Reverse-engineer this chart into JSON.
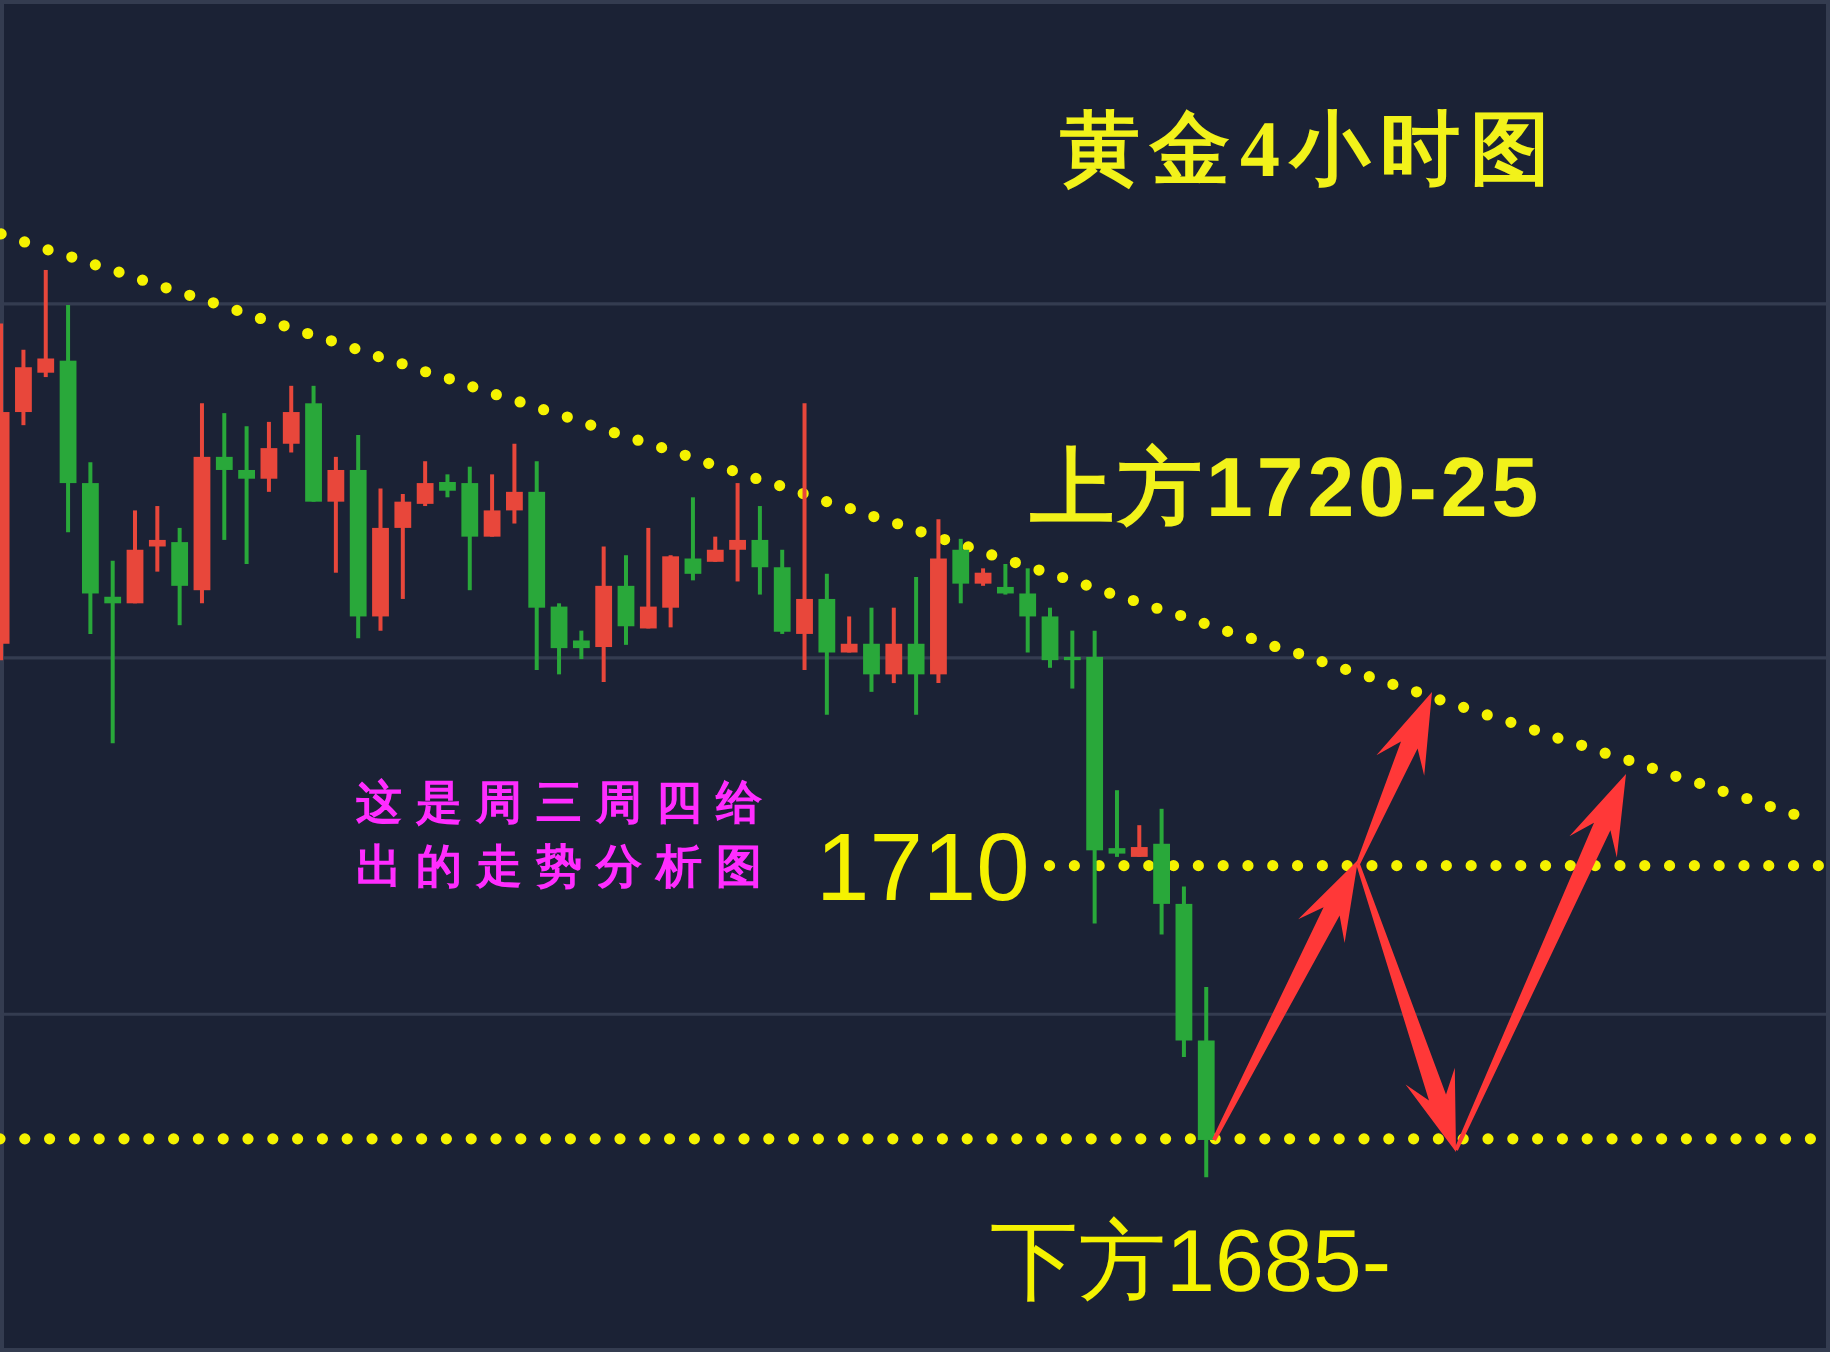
{
  "chart_data": {
    "type": "candlestick",
    "title": "黄金4小时图",
    "categories": [
      null,
      null,
      null,
      null,
      null,
      null,
      null,
      null,
      null,
      null,
      null,
      null,
      null,
      null,
      null,
      null,
      null,
      null,
      null,
      null,
      null,
      null,
      null,
      null,
      null,
      null,
      null,
      null,
      null,
      null,
      null,
      null,
      null,
      null,
      null,
      null,
      null,
      null,
      null,
      null,
      null,
      null,
      null,
      null,
      null,
      null,
      null,
      null,
      null,
      null,
      null,
      null,
      null,
      null,
      null,
      null,
      null,
      null,
      null,
      null,
      null,
      null,
      null,
      null,
      null,
      null,
      null,
      null,
      null,
      null,
      null,
      null,
      null,
      null,
      null,
      null,
      null,
      null,
      null,
      null,
      null,
      null
    ],
    "ohlc": [
      [
        1730.3,
        1759.6,
        1728.8,
        1751.5
      ],
      [
        1751.5,
        1757.2,
        1750.3,
        1755.6
      ],
      [
        1755.1,
        1764.5,
        1754.7,
        1756.4
      ],
      [
        1756.2,
        1761.3,
        1740.5,
        1745.0
      ],
      [
        1745.0,
        1746.9,
        1731.2,
        1734.9
      ],
      [
        1734.6,
        1737.9,
        1721.2,
        1734.0
      ],
      [
        1734.0,
        1742.5,
        1734.0,
        1738.9
      ],
      [
        1739.2,
        1742.9,
        1736.9,
        1739.8
      ],
      [
        1739.6,
        1740.9,
        1732.0,
        1735.6
      ],
      [
        1735.2,
        1752.3,
        1734.0,
        1747.4
      ],
      [
        1747.4,
        1751.4,
        1739.8,
        1746.2
      ],
      [
        1746.2,
        1750.2,
        1737.6,
        1745.4
      ],
      [
        1745.4,
        1750.6,
        1744.2,
        1748.2
      ],
      [
        1748.6,
        1753.9,
        1747.8,
        1751.5
      ],
      [
        1752.3,
        1753.9,
        1743.3,
        1743.3
      ],
      [
        1743.3,
        1747.4,
        1736.8,
        1746.2
      ],
      [
        1746.2,
        1749.4,
        1730.8,
        1732.8
      ],
      [
        1732.8,
        1744.5,
        1731.5,
        1740.9
      ],
      [
        1740.9,
        1744.0,
        1734.4,
        1743.3
      ],
      [
        1743.1,
        1747.0,
        1742.9,
        1745.0
      ],
      [
        1745.1,
        1745.8,
        1743.7,
        1744.3
      ],
      [
        1745.0,
        1746.5,
        1735.2,
        1740.1
      ],
      [
        1740.1,
        1745.8,
        1740.1,
        1742.5
      ],
      [
        1742.5,
        1748.6,
        1741.3,
        1744.2
      ],
      [
        1744.2,
        1747.0,
        1727.9,
        1733.6
      ],
      [
        1733.7,
        1734.0,
        1727.5,
        1729.9
      ],
      [
        1730.6,
        1731.5,
        1728.9,
        1729.9
      ],
      [
        1730.0,
        1739.2,
        1726.8,
        1735.6
      ],
      [
        1735.6,
        1738.4,
        1730.2,
        1731.9
      ],
      [
        1731.7,
        1740.9,
        1731.7,
        1733.7
      ],
      [
        1733.6,
        1738.4,
        1731.8,
        1738.3
      ],
      [
        1738.1,
        1743.7,
        1736.1,
        1736.7
      ],
      [
        1737.8,
        1740.1,
        1737.8,
        1738.9
      ],
      [
        1738.9,
        1745.0,
        1736.0,
        1739.8
      ],
      [
        1739.8,
        1742.9,
        1734.8,
        1737.3
      ],
      [
        1737.3,
        1738.9,
        1731.2,
        1731.4
      ],
      [
        1731.2,
        1752.3,
        1727.9,
        1734.4
      ],
      [
        1734.4,
        1736.7,
        1723.8,
        1729.5
      ],
      [
        1729.5,
        1732.8,
        1729.5,
        1730.3
      ],
      [
        1730.3,
        1733.6,
        1725.9,
        1727.5
      ],
      [
        1727.5,
        1733.6,
        1726.7,
        1730.3
      ],
      [
        1730.3,
        1736.4,
        1723.8,
        1727.5
      ],
      [
        1727.5,
        1741.7,
        1726.7,
        1738.1
      ],
      [
        1738.9,
        1739.9,
        1734.0,
        1735.8
      ],
      [
        1735.8,
        1737.2,
        1735.6,
        1736.8
      ],
      [
        1735.5,
        1737.6,
        1734.8,
        1734.9
      ],
      [
        1734.9,
        1737.2,
        1729.5,
        1732.8
      ],
      [
        1732.8,
        1733.6,
        1728.1,
        1728.8
      ],
      [
        1729.1,
        1731.5,
        1726.2,
        1728.8
      ],
      [
        1729.1,
        1731.5,
        1704.7,
        1711.4
      ],
      [
        1711.6,
        1716.9,
        1710.8,
        1711.1
      ],
      [
        1710.8,
        1713.7,
        1710.8,
        1711.7
      ],
      [
        1712.0,
        1715.2,
        1703.7,
        1706.5
      ],
      [
        1706.5,
        1708.1,
        1692.5,
        1694.0
      ],
      [
        1694.0,
        1698.9,
        1681.5,
        1684.9
      ],
      null,
      null,
      null,
      null,
      null,
      null,
      null,
      null,
      null,
      null,
      null,
      null,
      null,
      null,
      null,
      null,
      null,
      null,
      null,
      null,
      null,
      null,
      null,
      null,
      null,
      null,
      null
    ],
    "colors": [
      "#e8473b",
      "#e8473b",
      "#e8473b",
      "#29a83a",
      "#29a83a",
      "#29a83a",
      "#e8473b",
      "#e8473b",
      "#29a83a",
      "#e8473b",
      "#29a83a",
      "#29a83a",
      "#e8473b",
      "#e8473b",
      "#29a83a",
      "#e8473b",
      "#29a83a",
      "#e8473b",
      "#e8473b",
      "#e8473b",
      "#29a83a",
      "#29a83a",
      "#e8473b",
      "#e8473b",
      "#29a83a",
      "#29a83a",
      "#29a83a",
      "#e8473b",
      "#29a83a",
      "#e8473b",
      "#e8473b",
      "#29a83a",
      "#e8473b",
      "#e8473b",
      "#29a83a",
      "#29a83a",
      "#e8473b",
      "#29a83a",
      "#e8473b",
      "#29a83a",
      "#e8473b",
      "#29a83a",
      "#e8473b",
      "#29a83a",
      "#e8473b",
      "#29a83a",
      "#29a83a",
      "#29a83a",
      "#29a83a",
      "#29a83a",
      "#29a83a",
      "#e8473b",
      "#29a83a",
      "#29a83a",
      "#29a83a",
      null,
      null,
      null,
      null,
      null,
      null,
      null,
      null,
      null,
      null,
      null,
      null,
      null,
      null,
      null,
      null,
      null,
      null,
      null,
      null,
      null,
      null,
      null,
      null,
      null,
      null,
      null
    ],
    "series": [
      {
        "type": "line",
        "color": "#f5f200",
        "line_style": "dotted",
        "values": [
          1767.8,
          1767.1,
          1766.4,
          1765.8,
          1765.1,
          1764.5,
          1763.8,
          1763.1,
          1762.5,
          1761.8,
          1761.2,
          1760.5,
          1759.8,
          1759.2,
          1758.5,
          1757.9,
          1757.2,
          1756.5,
          1755.9,
          1755.2,
          1754.6,
          1753.9,
          1753.2,
          1752.6,
          1751.9,
          1751.3,
          1750.6,
          1749.9,
          1749.3,
          1748.6,
          1748.0,
          1747.3,
          1746.6,
          1746.0,
          1745.3,
          1744.7,
          1744.0,
          1743.3,
          1742.7,
          1742.0,
          1741.4,
          1740.7,
          1740.0,
          1739.4,
          1738.7,
          1738.0,
          1737.4,
          1736.7,
          1736.1,
          1735.4,
          1734.7,
          1734.1,
          1733.4,
          1732.8,
          1732.1,
          1731.4,
          1730.8,
          1730.1,
          1729.5,
          1728.8,
          1728.1,
          1727.5,
          1726.8,
          1726.2,
          1725.5,
          1724.8,
          1724.2,
          1723.5,
          1722.9,
          1722.2,
          1721.5,
          1720.9,
          1720.2,
          1719.6,
          1718.9,
          1718.2,
          1717.6,
          1716.9,
          1716.3,
          1715.6,
          1714.9,
          1714.3
        ]
      }
    ],
    "ylim": [
      1665.5,
      1789.2
    ],
    "yticks": [
      {
        "value": 1696.4,
        "label": null
      },
      {
        "value": 1729.0,
        "label": null
      },
      {
        "value": 1761.4,
        "label": null
      }
    ],
    "grid": "y",
    "ref_lines": [
      {
        "axis": "y",
        "value": 1710,
        "label": "1710",
        "color": "#f5f200",
        "line_style": "dotted"
      },
      {
        "axis": "y",
        "value": 1685,
        "label": "下方1685-",
        "color": "#f5f200",
        "line_style": "dotted"
      }
    ],
    "annotations": [
      "上方1720-25",
      "这是周三周四给出的走势分析图"
    ]
  }
}
